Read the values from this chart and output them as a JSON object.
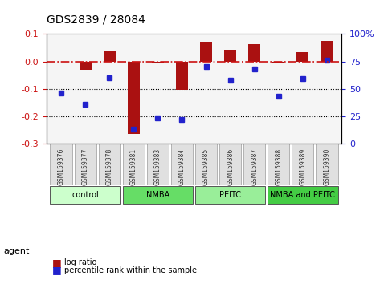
{
  "title": "GDS2839 / 28084",
  "samples": [
    "GSM159376",
    "GSM159377",
    "GSM159378",
    "GSM159381",
    "GSM159383",
    "GSM159384",
    "GSM159385",
    "GSM159386",
    "GSM159387",
    "GSM159388",
    "GSM159389",
    "GSM159390"
  ],
  "log_ratio": [
    0.0,
    -0.03,
    0.04,
    -0.265,
    -0.005,
    -0.105,
    0.072,
    0.042,
    0.062,
    -0.005,
    0.033,
    0.075
  ],
  "percentile_rank": [
    46,
    36,
    60,
    13,
    23,
    22,
    70,
    58,
    68,
    43,
    59,
    76
  ],
  "groups": [
    {
      "label": "control",
      "start": 0,
      "end": 3,
      "color": "#ccffcc"
    },
    {
      "label": "NMBA",
      "start": 3,
      "end": 6,
      "color": "#66dd66"
    },
    {
      "label": "PEITC",
      "start": 6,
      "end": 9,
      "color": "#99ee99"
    },
    {
      "label": "NMBA and PEITC",
      "start": 9,
      "end": 12,
      "color": "#44cc44"
    }
  ],
  "ylim": [
    -0.3,
    0.1
  ],
  "yticks_left": [
    -0.3,
    -0.2,
    -0.1,
    0.0,
    0.1
  ],
  "yticks_right": [
    0,
    25,
    50,
    75,
    100
  ],
  "bar_color": "#aa1111",
  "dot_color": "#2222cc",
  "hline_color": "#cc1111",
  "dotline_color": "#000000",
  "background_color": "#f5f5f5",
  "legend_bar_label": "log ratio",
  "legend_dot_label": "percentile rank within the sample",
  "agent_label": "agent"
}
